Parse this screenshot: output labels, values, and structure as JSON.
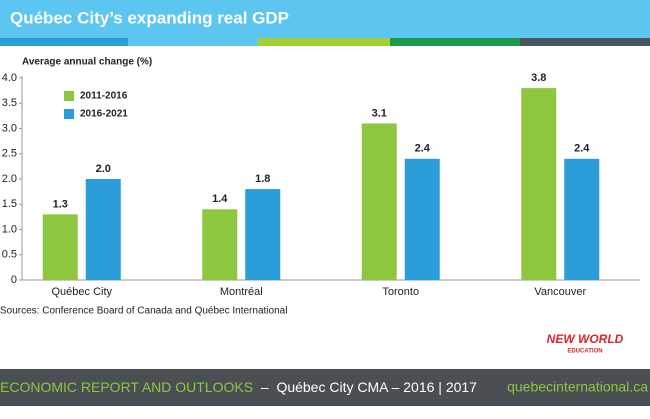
{
  "chart_data": {
    "type": "bar",
    "title": "Québec City’s expanding real GDP",
    "y_label": "Average annual change (%)",
    "categories": [
      "Québec City",
      "Montréal",
      "Toronto",
      "Vancouver"
    ],
    "series": [
      {
        "name": "2011-2016",
        "color": "#8dc63f",
        "values": [
          1.3,
          1.4,
          3.1,
          3.8
        ],
        "value_labels": [
          "1.3",
          "1.4",
          "3.1",
          "3.8"
        ]
      },
      {
        "name": "2016-2021",
        "color": "#2b9ed9",
        "values": [
          2.0,
          1.8,
          2.4,
          2.4
        ],
        "value_labels": [
          "2.0",
          "1.8",
          "2.4",
          "2.4"
        ]
      }
    ],
    "ylim": [
      0,
      4
    ],
    "yticks": [
      0,
      0.5,
      {
        "value": 1,
        "label": "1.0"
      },
      1.5,
      {
        "value": 2,
        "label": "2.0"
      },
      2.5,
      {
        "value": 3,
        "label": "3.0"
      },
      3.5,
      {
        "value": 4,
        "label": "4.0"
      }
    ],
    "grid": false,
    "legend": "upper left",
    "source": "Sources: Conference Board of Canada and Québec International"
  },
  "logo": {
    "line1": "NEW WORLD",
    "line2": "EDUCATION"
  },
  "footer": {
    "report": "ECONOMIC REPORT AND OUTLOOKS",
    "edition": "  –  Québec City CMA – 2016 | 2017",
    "website": "quebecinternational.ca"
  }
}
